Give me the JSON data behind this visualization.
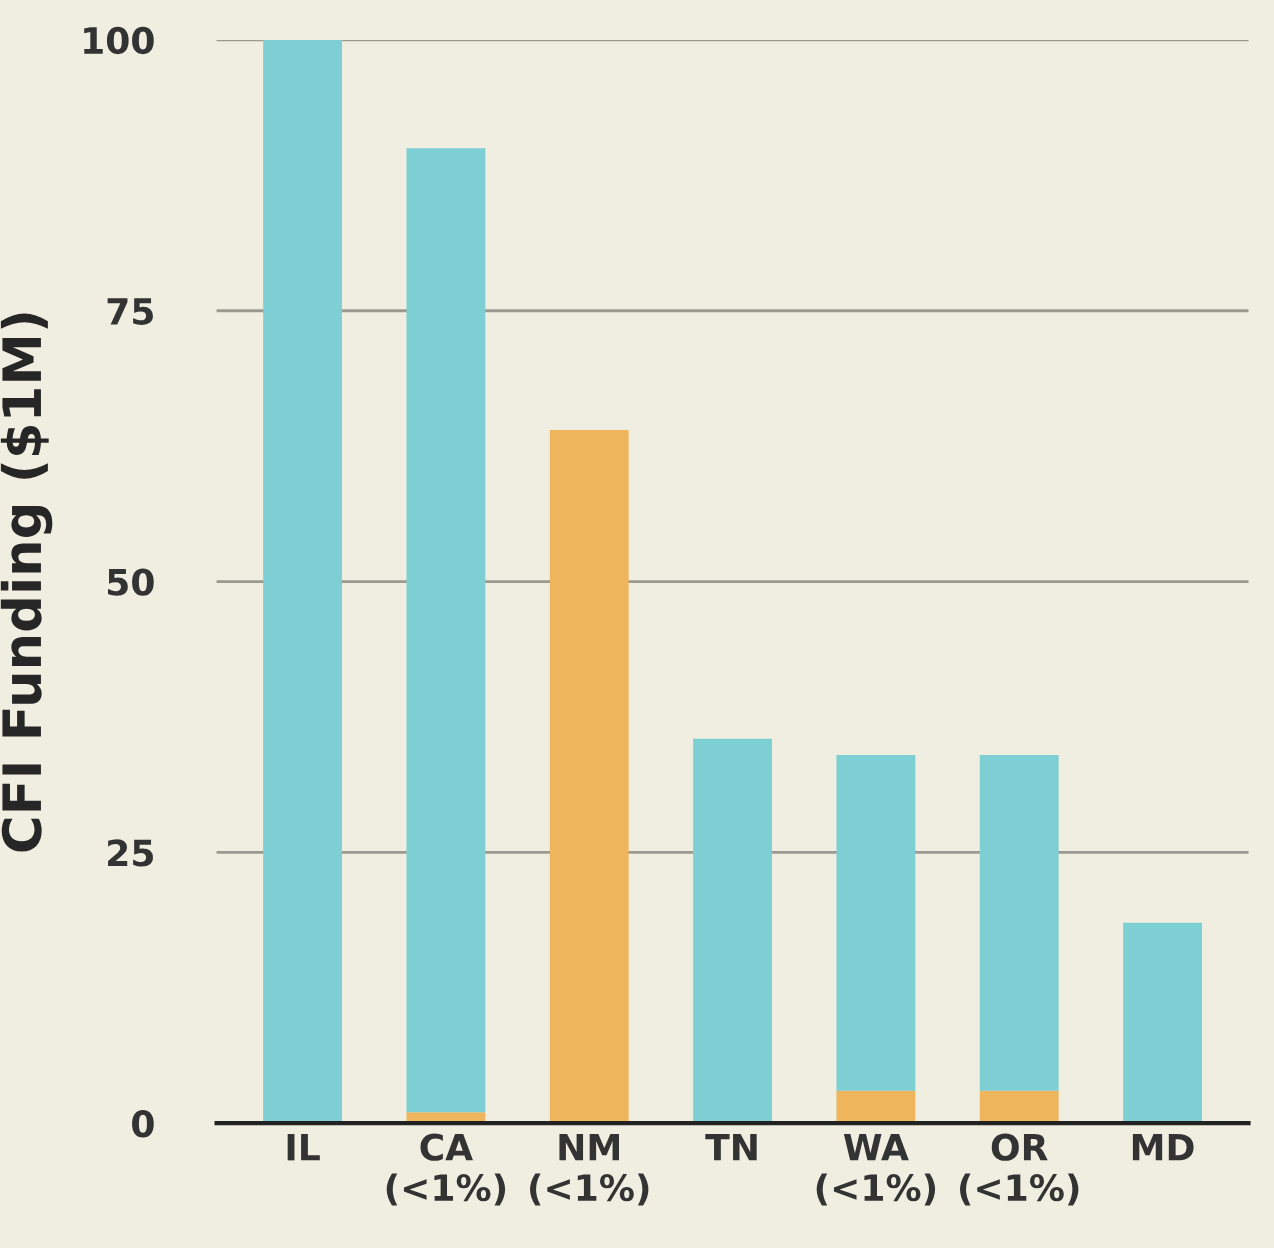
{
  "chart_data": {
    "type": "bar",
    "ylabel": "CFI Funding ($1M)",
    "categories": [
      "IL",
      "CA\n(<1%)",
      "NM\n(<1%)",
      "TN",
      "WA\n(<1%)",
      "OR\n(<1%)",
      "MD"
    ],
    "stacked": true,
    "series": [
      {
        "color": "#efb55c",
        "values": [
          0,
          1,
          64,
          0,
          3,
          3,
          0
        ]
      },
      {
        "color": "#7dcfd4",
        "values": [
          100,
          89,
          0,
          35.5,
          31,
          31,
          18.5
        ]
      }
    ],
    "ylim": [
      0,
      100
    ],
    "yticks": [
      0,
      25,
      50,
      75,
      100
    ],
    "grid": "y"
  }
}
